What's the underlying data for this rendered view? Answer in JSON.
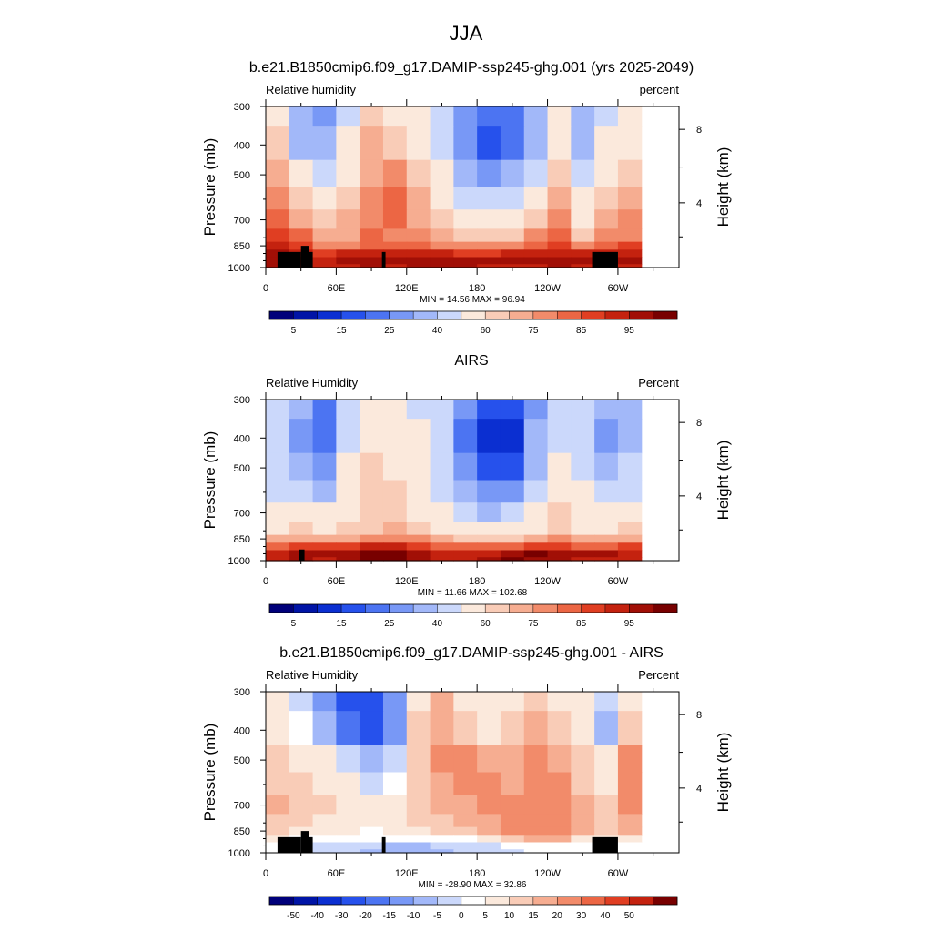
{
  "figure": {
    "title": "JJA"
  },
  "colors": {
    "rh_levels": [
      "#00007a",
      "#0014a6",
      "#0b2fd1",
      "#2651ec",
      "#4c74f2",
      "#7898f6",
      "#a2b8f9",
      "#cbd8fb",
      "#fbe9dc",
      "#f9ccb7",
      "#f6ad91",
      "#f28b6a",
      "#ec6644",
      "#e03e22",
      "#c4220f",
      "#a10f06",
      "#780000"
    ],
    "diff_levels": [
      "#00007a",
      "#0014a6",
      "#0b2fd1",
      "#2651ec",
      "#4c74f2",
      "#7898f6",
      "#a2b8f9",
      "#cbd8fb",
      "#ffffff",
      "#fbe9dc",
      "#f9ccb7",
      "#f6ad91",
      "#f28b6a",
      "#ec6644",
      "#e03e22",
      "#c4220f",
      "#780000"
    ],
    "terrain": "#000000"
  },
  "chart_data": [
    {
      "type": "heatmap",
      "title": "b.e21.B1850cmip6.f09_g17.DAMIP-ssp245-ghg.001 (yrs 2025-2049)",
      "left_string": "Relative humidity",
      "right_string": "percent",
      "ylabel": "Pressure (mb)",
      "ylabel_right": "Height (km)",
      "x_ticks": [
        "0",
        "60E",
        "120E",
        "180",
        "120W",
        "60W"
      ],
      "x_range": [
        0,
        352
      ],
      "y_ticks": [
        "300",
        "400",
        "500",
        "700",
        "850",
        "1000"
      ],
      "y_range": [
        300,
        1000
      ],
      "y_scale": "log",
      "height_ticks": [
        "8",
        "4"
      ],
      "min": 14.56,
      "max": 96.94,
      "stats_text": "MIN =  14.56  MAX =  96.94",
      "colorbar_labels": [
        "5",
        "15",
        "25",
        "40",
        "60",
        "75",
        "85",
        "95"
      ],
      "colorbar_levels": [
        5,
        10,
        15,
        20,
        25,
        30,
        40,
        50,
        60,
        65,
        70,
        75,
        80,
        85,
        90,
        95
      ],
      "x_grid": [
        0,
        20,
        40,
        60,
        80,
        100,
        120,
        140,
        160,
        180,
        200,
        220,
        240,
        260,
        280,
        300,
        320,
        340,
        352
      ],
      "p_grid": [
        300,
        400,
        500,
        600,
        700,
        800,
        850,
        900,
        950,
        1000
      ],
      "values": [
        [
          55,
          35,
          28,
          45,
          62,
          58,
          50,
          40,
          28,
          20,
          22,
          35,
          52,
          32,
          45,
          50
        ],
        [
          62,
          38,
          30,
          50,
          65,
          62,
          58,
          45,
          28,
          15,
          20,
          38,
          55,
          35,
          50,
          55
        ],
        [
          68,
          55,
          40,
          58,
          68,
          70,
          62,
          52,
          38,
          28,
          32,
          45,
          60,
          45,
          55,
          60
        ],
        [
          72,
          62,
          50,
          62,
          70,
          75,
          65,
          58,
          48,
          40,
          45,
          55,
          65,
          52,
          62,
          65
        ],
        [
          75,
          68,
          60,
          65,
          72,
          75,
          68,
          62,
          55,
          50,
          55,
          62,
          72,
          58,
          68,
          70
        ],
        [
          80,
          78,
          68,
          68,
          75,
          72,
          70,
          68,
          62,
          60,
          62,
          70,
          78,
          62,
          72,
          72
        ],
        [
          85,
          82,
          72,
          72,
          78,
          75,
          75,
          72,
          70,
          70,
          72,
          75,
          82,
          72,
          78,
          80
        ],
        [
          90,
          88,
          80,
          85,
          88,
          85,
          85,
          85,
          82,
          82,
          85,
          85,
          88,
          85,
          88,
          88
        ],
        [
          92,
          90,
          85,
          90,
          92,
          90,
          92,
          92,
          92,
          90,
          92,
          90,
          92,
          90,
          92,
          90
        ],
        [
          90,
          88,
          85,
          88,
          90,
          88,
          90,
          90,
          90,
          88,
          88,
          88,
          90,
          88,
          90,
          88
        ]
      ],
      "terrain": [
        [
          10,
          30,
          890
        ],
        [
          30,
          37,
          850
        ],
        [
          37,
          40,
          890
        ],
        [
          99,
          102,
          890
        ],
        [
          278,
          300,
          890
        ]
      ]
    },
    {
      "type": "heatmap",
      "title": "AIRS",
      "left_string": "Relative Humidity",
      "right_string": "Percent",
      "ylabel": "Pressure (mb)",
      "ylabel_right": "Height (km)",
      "x_ticks": [
        "0",
        "60E",
        "120E",
        "180",
        "120W",
        "60W"
      ],
      "x_range": [
        0,
        352
      ],
      "y_ticks": [
        "300",
        "400",
        "500",
        "700",
        "850",
        "1000"
      ],
      "y_range": [
        300,
        1000
      ],
      "y_scale": "log",
      "height_ticks": [
        "8",
        "4"
      ],
      "min": 11.66,
      "max": 102.68,
      "stats_text": "MIN =  11.66  MAX =  102.68",
      "colorbar_labels": [
        "5",
        "15",
        "25",
        "40",
        "60",
        "75",
        "85",
        "95"
      ],
      "colorbar_levels": [
        5,
        10,
        15,
        20,
        25,
        30,
        40,
        50,
        60,
        65,
        70,
        75,
        80,
        85,
        90,
        95
      ],
      "x_grid": [
        0,
        20,
        40,
        60,
        80,
        100,
        120,
        140,
        160,
        180,
        200,
        220,
        240,
        260,
        280,
        300,
        320,
        340,
        352
      ],
      "p_grid": [
        300,
        400,
        500,
        600,
        700,
        800,
        850,
        900,
        950,
        1000
      ],
      "values": [
        [
          40,
          30,
          22,
          45,
          55,
          52,
          48,
          40,
          25,
          18,
          15,
          28,
          42,
          40,
          32,
          38
        ],
        [
          42,
          28,
          20,
          48,
          58,
          55,
          50,
          40,
          22,
          12,
          12,
          30,
          45,
          42,
          28,
          35
        ],
        [
          45,
          35,
          25,
          52,
          60,
          58,
          55,
          42,
          25,
          15,
          18,
          38,
          50,
          48,
          35,
          40
        ],
        [
          48,
          45,
          38,
          55,
          60,
          60,
          55,
          48,
          35,
          25,
          28,
          42,
          55,
          52,
          45,
          48
        ],
        [
          52,
          55,
          50,
          58,
          62,
          62,
          58,
          52,
          45,
          38,
          42,
          52,
          60,
          55,
          52,
          55
        ],
        [
          58,
          60,
          58,
          60,
          62,
          65,
          60,
          58,
          55,
          50,
          52,
          58,
          62,
          58,
          58,
          60
        ],
        [
          65,
          68,
          65,
          68,
          70,
          72,
          70,
          65,
          62,
          62,
          62,
          65,
          70,
          65,
          65,
          68
        ],
        [
          78,
          82,
          80,
          82,
          85,
          85,
          82,
          78,
          75,
          75,
          78,
          80,
          82,
          78,
          78,
          80
        ],
        [
          88,
          92,
          90,
          92,
          95,
          97,
          92,
          88,
          88,
          88,
          92,
          95,
          92,
          90,
          90,
          88
        ],
        [
          85,
          90,
          88,
          90,
          95,
          95,
          90,
          88,
          88,
          90,
          95,
          92,
          90,
          88,
          88,
          85
        ]
      ],
      "terrain": [
        [
          28,
          33,
          920
        ]
      ]
    },
    {
      "type": "heatmap",
      "title": "b.e21.B1850cmip6.f09_g17.DAMIP-ssp245-ghg.001 - AIRS",
      "left_string": "Relative Humidity",
      "right_string": "Percent",
      "ylabel": "Pressure (mb)",
      "ylabel_right": "Height (km)",
      "x_ticks": [
        "0",
        "60E",
        "120E",
        "180",
        "120W",
        "60W"
      ],
      "x_range": [
        0,
        352
      ],
      "y_ticks": [
        "300",
        "400",
        "500",
        "700",
        "850",
        "1000"
      ],
      "y_range": [
        300,
        1000
      ],
      "y_scale": "log",
      "height_ticks": [
        "8",
        "4"
      ],
      "min": -28.9,
      "max": 32.86,
      "stats_text": "MIN = -28.90  MAX =  32.86",
      "colorbar_labels": [
        "-50",
        "-40",
        "-30",
        "-20",
        "-15",
        "-10",
        "-5",
        "0",
        "5",
        "10",
        "15",
        "20",
        "30",
        "40",
        "50"
      ],
      "colorbar_levels": [
        -50,
        -40,
        -30,
        -20,
        -15,
        -10,
        -5,
        0,
        5,
        10,
        15,
        20,
        30,
        40,
        50
      ],
      "x_grid": [
        0,
        20,
        40,
        60,
        80,
        100,
        120,
        140,
        160,
        180,
        200,
        220,
        240,
        260,
        280,
        300,
        320,
        340,
        352
      ],
      "p_grid": [
        300,
        400,
        500,
        600,
        700,
        800,
        850,
        900,
        950,
        1000
      ],
      "values": [
        [
          5,
          -5,
          -15,
          -25,
          -28,
          -15,
          5,
          15,
          8,
          5,
          8,
          10,
          8,
          5,
          -5,
          5
        ],
        [
          8,
          0,
          -10,
          -20,
          -22,
          -12,
          10,
          18,
          12,
          8,
          12,
          15,
          10,
          8,
          -8,
          10
        ],
        [
          10,
          8,
          5,
          -5,
          -10,
          -5,
          12,
          20,
          20,
          15,
          18,
          20,
          18,
          10,
          5,
          20
        ],
        [
          12,
          10,
          8,
          5,
          -2,
          0,
          10,
          18,
          20,
          20,
          18,
          20,
          20,
          12,
          8,
          20
        ],
        [
          15,
          12,
          10,
          8,
          5,
          8,
          12,
          15,
          18,
          20,
          20,
          22,
          22,
          15,
          12,
          22
        ],
        [
          12,
          10,
          8,
          6,
          5,
          8,
          10,
          12,
          15,
          18,
          22,
          25,
          25,
          15,
          10,
          18
        ],
        [
          10,
          8,
          5,
          5,
          4,
          6,
          8,
          10,
          12,
          15,
          22,
          28,
          28,
          18,
          12,
          15
        ],
        [
          5,
          4,
          3,
          3,
          2,
          2,
          2,
          3,
          4,
          6,
          10,
          15,
          15,
          8,
          5,
          6
        ],
        [
          2,
          0,
          -2,
          -3,
          -5,
          -7,
          -8,
          -5,
          -3,
          -2,
          0,
          2,
          3,
          2,
          0,
          2
        ],
        [
          3,
          0,
          -3,
          -5,
          -6,
          -8,
          -10,
          -6,
          -4,
          -3,
          -2,
          0,
          2,
          2,
          1,
          3
        ]
      ],
      "terrain": [
        [
          10,
          30,
          890
        ],
        [
          30,
          37,
          850
        ],
        [
          37,
          40,
          890
        ],
        [
          99,
          102,
          890
        ],
        [
          278,
          300,
          890
        ]
      ]
    }
  ]
}
